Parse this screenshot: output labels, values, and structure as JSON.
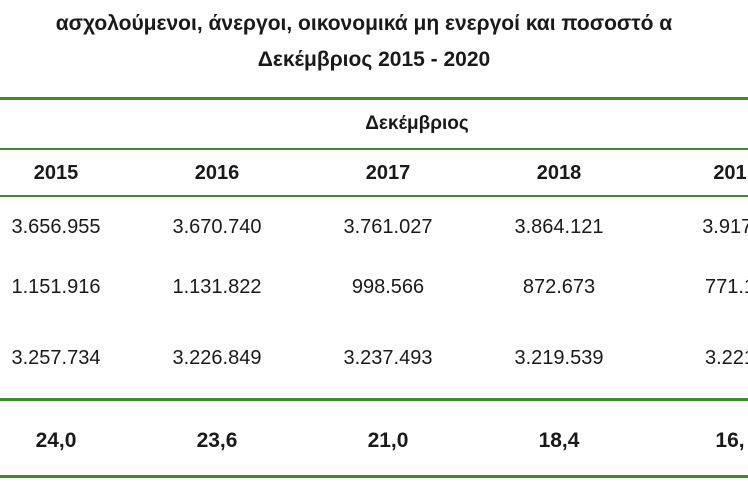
{
  "title_line1": "ασχολούμενοι, άνεργοι, οικονομικά μη ενεργοί και ποσοστό α",
  "title_line2": "Δεκέμβριος 2015 - 2020",
  "group_header": "Δεκέμβριος",
  "years": [
    "2015",
    "2016",
    "2017",
    "2018",
    "201"
  ],
  "rows": [
    [
      "3.656.955",
      "3.670.740",
      "3.761.027",
      "3.864.121",
      "3.917."
    ],
    [
      "1.151.916",
      "1.131.822",
      "998.566",
      "872.673",
      "771.1"
    ],
    [
      "3.257.734",
      "3.226.849",
      "3.237.493",
      "3.219.539",
      "3.221"
    ]
  ],
  "rate_row": [
    "24,0",
    "23,6",
    "21,0",
    "18,4",
    "16,"
  ],
  "colors": {
    "accent_rule": "#3f8a2e",
    "text": "#1a1a1a"
  }
}
